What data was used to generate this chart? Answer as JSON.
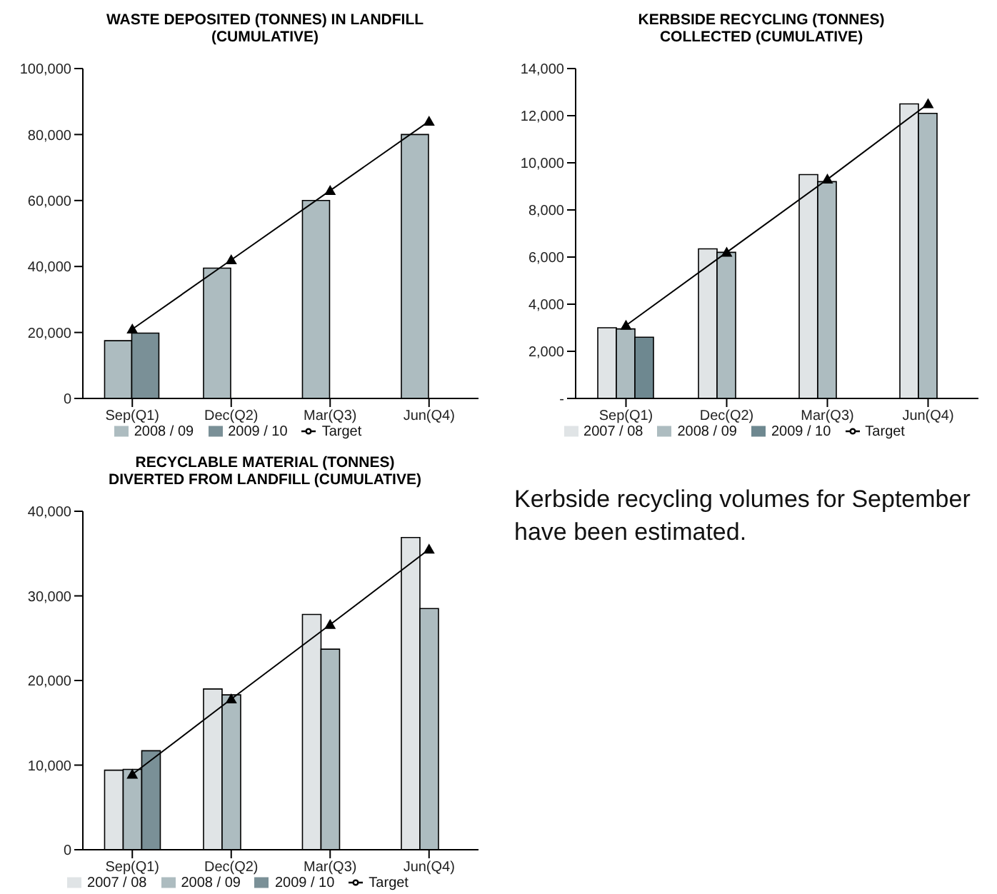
{
  "chart_data": [
    {
      "type": "bar",
      "title": "WASTE DEPOSITED (TONNES) IN LANDFILL\n(CUMULATIVE)",
      "categories": [
        "Sep(Q1)",
        "Dec(Q2)",
        "Mar(Q3)",
        "Jun(Q4)"
      ],
      "series": [
        {
          "name": "2008 / 09",
          "color": "#adbcc0",
          "values": [
            17500,
            39500,
            60000,
            80000
          ]
        },
        {
          "name": "2009 / 10",
          "color": "#7a9097",
          "values": [
            19800,
            null,
            null,
            null
          ]
        },
        {
          "name": "Target",
          "type": "line",
          "color": "#000000",
          "marker": "triangle",
          "line_style": "solid",
          "values": [
            21000,
            42000,
            63000,
            84000
          ]
        }
      ],
      "ylim": [
        0,
        100000
      ],
      "yticks": [
        0,
        {
          "value": 20000,
          "label": "20,000"
        },
        {
          "value": 40000,
          "label": "40,000"
        },
        {
          "value": 60000,
          "label": "60,000"
        },
        {
          "value": 80000,
          "label": "80,000"
        },
        {
          "value": 100000,
          "label": "100,000"
        }
      ],
      "grid": false,
      "legend": "bottom"
    },
    {
      "type": "bar",
      "title": "KERBSIDE RECYCLING (TONNES)\nCOLLECTED (CUMULATIVE)",
      "categories": [
        "Sep(Q1)",
        "Dec(Q2)",
        "Mar(Q3)",
        "Jun(Q4)"
      ],
      "series": [
        {
          "name": "2007 / 08",
          "color": "#e0e4e6",
          "values": [
            3000,
            6350,
            9500,
            12500
          ]
        },
        {
          "name": "2008 / 09",
          "color": "#adbcc0",
          "values": [
            2950,
            6200,
            9200,
            12100
          ]
        },
        {
          "name": "2009 / 10",
          "color": "#6e8890",
          "values": [
            2600,
            null,
            null,
            null
          ]
        },
        {
          "name": "Target",
          "type": "line",
          "color": "#000000",
          "marker": "triangle",
          "line_style": "solid",
          "values": [
            3100,
            6200,
            9300,
            12500
          ]
        }
      ],
      "ylim": [
        0,
        14000
      ],
      "yticks": [
        {
          "value": 0,
          "label": "-"
        },
        {
          "value": 2000,
          "label": "2,000"
        },
        {
          "value": 4000,
          "label": "4,000"
        },
        {
          "value": 6000,
          "label": "6,000"
        },
        {
          "value": 8000,
          "label": "8,000"
        },
        {
          "value": 10000,
          "label": "10,000"
        },
        {
          "value": 12000,
          "label": "12,000"
        },
        {
          "value": 14000,
          "label": "14,000"
        }
      ],
      "grid": false,
      "legend": "bottom"
    },
    {
      "type": "bar",
      "title": "RECYCLABLE MATERIAL (TONNES)\nDIVERTED FROM LANDFILL (CUMULATIVE)",
      "categories": [
        "Sep(Q1)",
        "Dec(Q2)",
        "Mar(Q3)",
        "Jun(Q4)"
      ],
      "series": [
        {
          "name": "2007 / 08",
          "color": "#e0e4e6",
          "values": [
            9400,
            19000,
            27800,
            36900
          ]
        },
        {
          "name": "2008 / 09",
          "color": "#adbcc0",
          "values": [
            9500,
            18300,
            23700,
            28500
          ]
        },
        {
          "name": "2009 / 10",
          "color": "#7a9097",
          "values": [
            11700,
            null,
            null,
            null
          ]
        },
        {
          "name": "Target",
          "type": "line",
          "color": "#000000",
          "marker": "triangle",
          "line_style": "solid",
          "values": [
            8900,
            17800,
            26600,
            35500
          ]
        }
      ],
      "ylim": [
        0,
        40000
      ],
      "yticks": [
        0,
        {
          "value": 10000,
          "label": "10,000"
        },
        {
          "value": 20000,
          "label": "20,000"
        },
        {
          "value": 30000,
          "label": "30,000"
        },
        {
          "value": 40000,
          "label": "40,000"
        }
      ],
      "grid": false,
      "legend": "bottom"
    },
    {
      "type": "other",
      "annotations": [
        "Kerbside recycling volumes for September have been estimated."
      ]
    }
  ]
}
